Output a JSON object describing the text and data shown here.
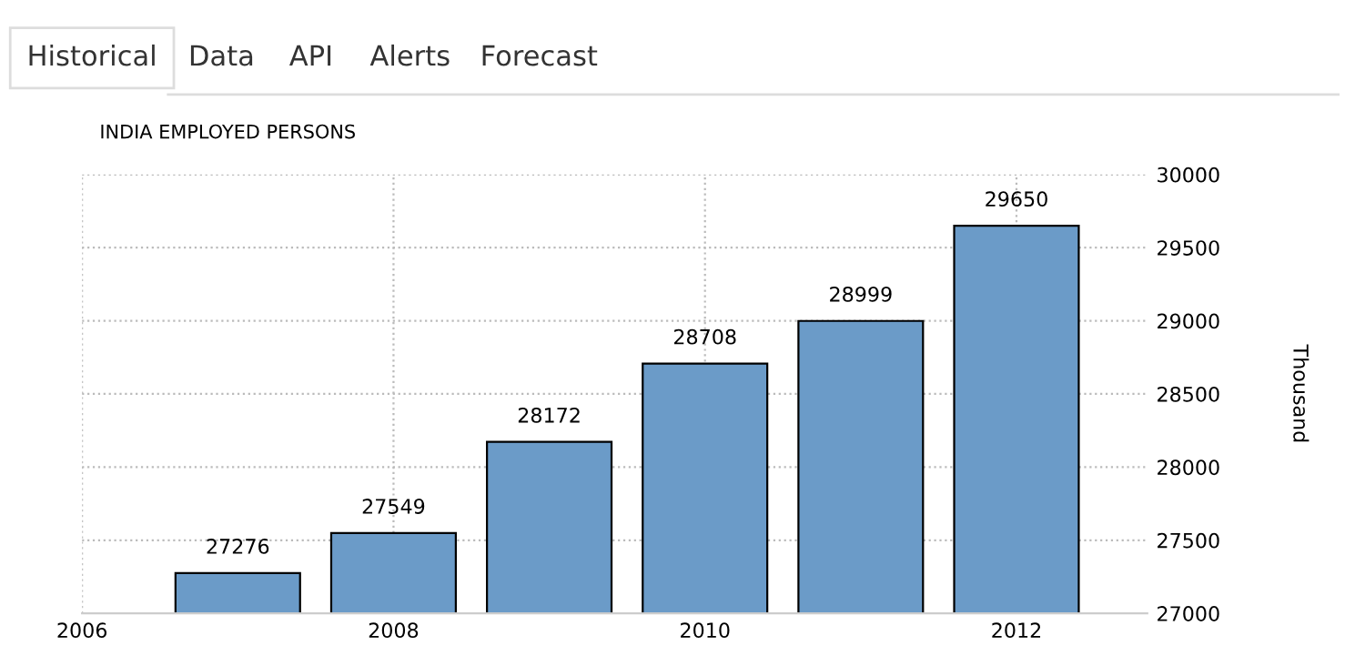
{
  "chart_data": {
    "type": "bar",
    "title": "INDIA EMPLOYED PERSONS",
    "ylabel": "Thousand",
    "annotations": [
      "Historical",
      "Data",
      "API",
      "Alerts",
      "Forecast"
    ],
    "x": [
      2007,
      2008,
      2009,
      2010,
      2011,
      2012
    ],
    "values": [
      27276,
      27549,
      28172,
      28708,
      28999,
      29650
    ],
    "color": "#6b9bc8",
    "xlim": [
      2006,
      2012.84
    ],
    "xticks": [
      2006,
      2008,
      2010,
      2012
    ],
    "ylim": [
      27000,
      30000
    ],
    "yticks": [
      27000,
      27500,
      28000,
      28500,
      29000,
      29500,
      30000
    ],
    "grid": true,
    "data_labels": true
  }
}
